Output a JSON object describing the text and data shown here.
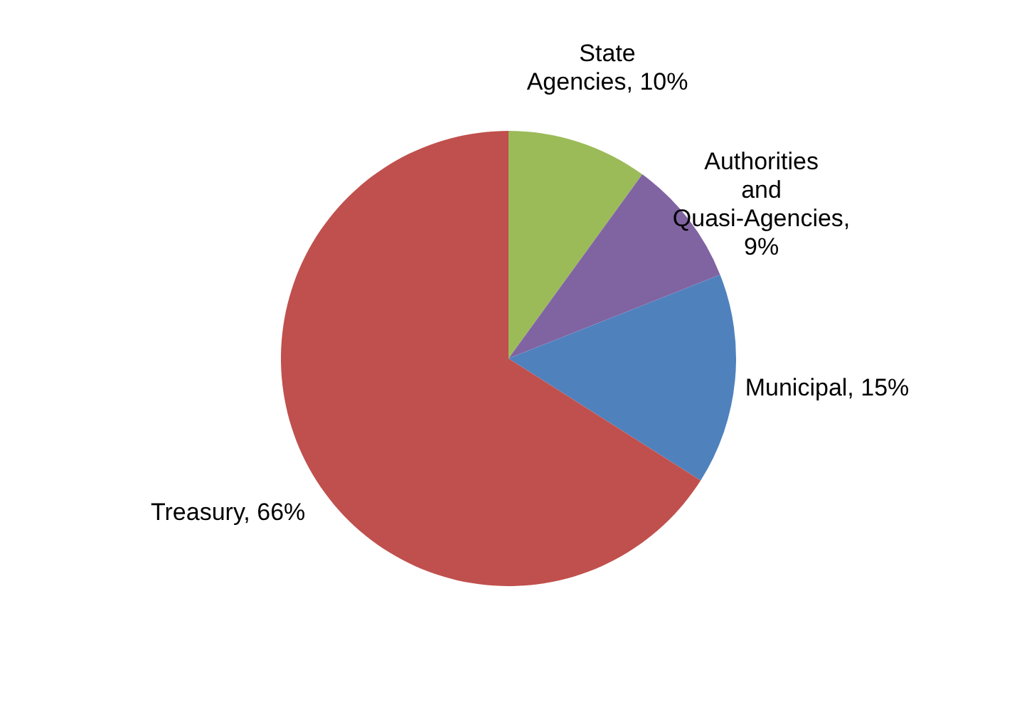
{
  "chart_data": {
    "type": "pie",
    "categories": [
      "State Agencies, 10%",
      "Authorities and Quasi-Agencies, 9%",
      "Municipal, 15%",
      "Treasury, 66%"
    ],
    "values": [
      10,
      9,
      15,
      66
    ],
    "colors": [
      "#9bbb59",
      "#8064a2",
      "#4f81bd",
      "#c0504d"
    ],
    "legend": false
  }
}
